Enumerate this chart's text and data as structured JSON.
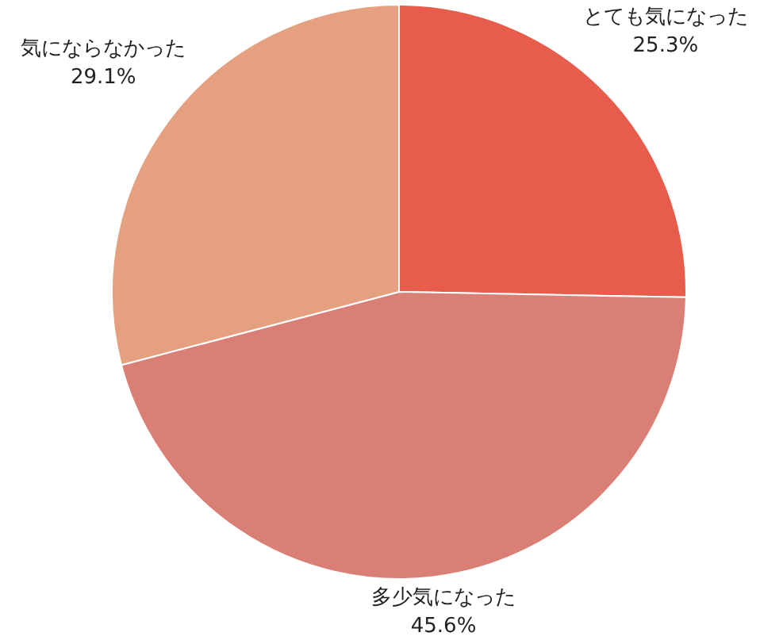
{
  "chart_data": {
    "type": "pie",
    "categories": [
      "とても気になった",
      "多少気になった",
      "気にならなかった"
    ],
    "values": [
      25.3,
      45.6,
      29.1
    ],
    "colors": [
      "#e85c4c",
      "#d97f75",
      "#e5a07f"
    ],
    "value_labels": [
      "25.3%",
      "45.6%",
      "29.1%"
    ],
    "legend": false
  }
}
